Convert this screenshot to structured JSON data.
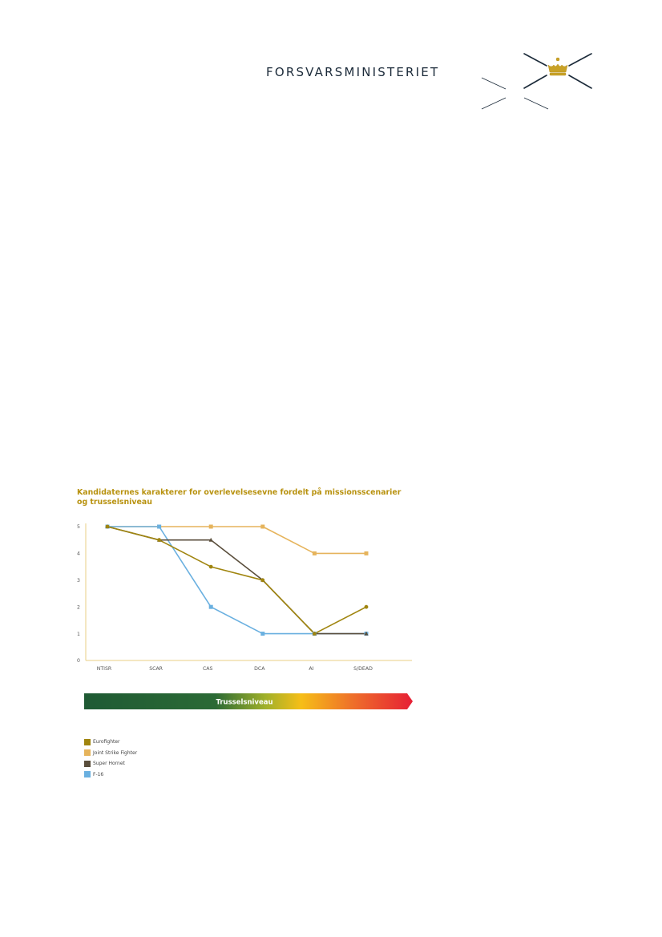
{
  "header": {
    "ministry_name": "FORSVARSMINISTERIET",
    "logo_icon": "crown-cross-logo-icon"
  },
  "chart_data": {
    "type": "line",
    "title": "Kandidaternes karakterer for overlevelsesevne fordelt på missionsscenarier og trusselsniveau",
    "categories": [
      "NTISR",
      "SCAR",
      "CAS",
      "DCA",
      "AI",
      "S/DEAD"
    ],
    "ylim": [
      0,
      5
    ],
    "yticks": [
      "0",
      "1",
      "2",
      "3",
      "4",
      "5"
    ],
    "grid": false,
    "series": [
      {
        "name": "Eurofighter",
        "values": [
          5,
          4.5,
          3.5,
          3,
          1,
          2
        ],
        "color": "#a0850f",
        "marker": "circle"
      },
      {
        "name": "Joint Strike Fighter",
        "values": [
          5,
          5,
          5,
          5,
          4,
          4
        ],
        "color": "#e6b45c",
        "marker": "square"
      },
      {
        "name": "Super Hornet",
        "values": [
          5,
          4.5,
          4.5,
          3,
          1,
          1
        ],
        "color": "#5a4e3c",
        "marker": "triangle"
      },
      {
        "name": "F-16",
        "values": [
          5,
          5,
          2,
          1,
          1,
          1
        ],
        "color": "#6ab0e0",
        "marker": "square"
      }
    ],
    "legend_position": "bottom-left",
    "threat_bar_label": "Trusselsniveau"
  }
}
